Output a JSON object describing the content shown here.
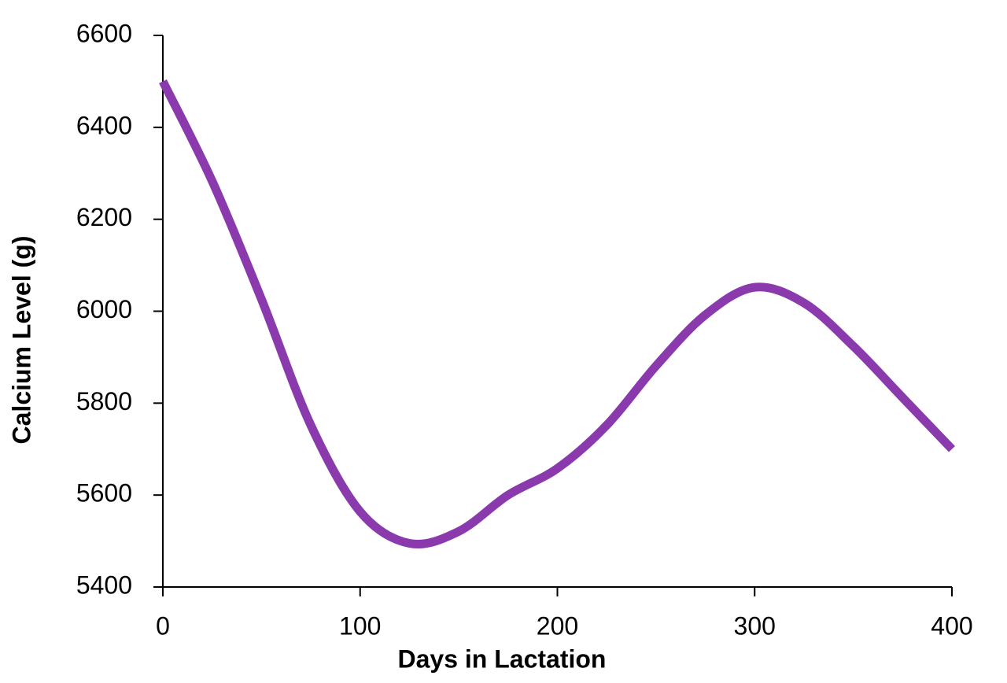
{
  "chart_data": {
    "type": "line",
    "x_label": "Days in Lactation",
    "y_label": "Calcium Level (g)",
    "xlim": [
      0,
      400
    ],
    "xticks": [
      0,
      100,
      200,
      300,
      400
    ],
    "ylim": [
      5400,
      6600
    ],
    "yticks": [
      5400,
      5600,
      5800,
      6000,
      6200,
      6400,
      6600
    ],
    "x": [
      0,
      25,
      50,
      75,
      100,
      125,
      150,
      175,
      200,
      225,
      250,
      275,
      300,
      325,
      350,
      375,
      400
    ],
    "series": [
      {
        "name": "Calcium Level",
        "color": "#8B3AAE",
        "values": [
          6500,
          6283,
          6026,
          5752,
          5564,
          5495,
          5521,
          5600,
          5658,
          5752,
          5881,
          5992,
          6052,
          6018,
          5924,
          5812,
          5700
        ]
      }
    ]
  }
}
